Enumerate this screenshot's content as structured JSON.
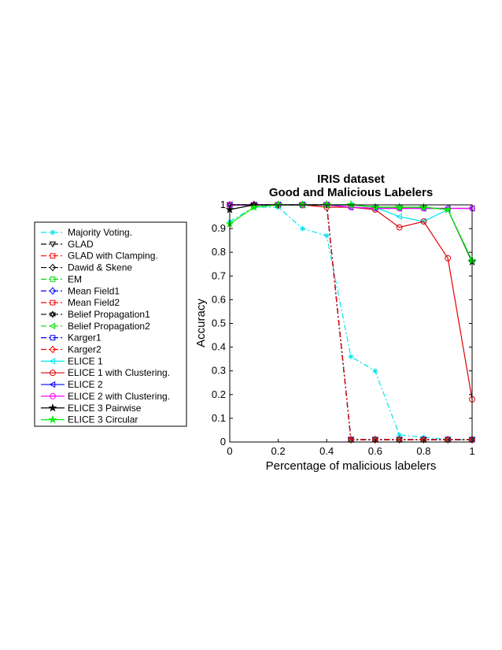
{
  "chart_data": {
    "type": "line",
    "title": "IRIS dataset",
    "subtitle": "Good and Malicious Labelers",
    "xlabel": "Percentage of malicious labelers",
    "ylabel": "Accuracy",
    "xlim": [
      0,
      1
    ],
    "ylim": [
      0,
      1
    ],
    "xticks": [
      "0",
      "0.2",
      "0.4",
      "0.6",
      "0.8",
      "1"
    ],
    "yticks": [
      "0",
      "0.1",
      "0.2",
      "0.3",
      "0.4",
      "0.5",
      "0.6",
      "0.7",
      "0.8",
      "0.9",
      "1"
    ],
    "grid": false,
    "legend_position": "left-outside",
    "x": [
      0,
      0.1,
      0.2,
      0.3,
      0.4,
      0.5,
      0.6,
      0.7,
      0.8,
      0.9,
      1.0
    ],
    "series": [
      {
        "name": "Majority Voting.",
        "color": "#00e5ee",
        "dash": "dashdot",
        "marker": "asterisk",
        "values": [
          0.93,
          0.99,
          0.99,
          0.9,
          0.87,
          0.36,
          0.3,
          0.03,
          0.02,
          0.01,
          0.01
        ]
      },
      {
        "name": "GLAD",
        "color": "#000000",
        "dash": "dashdot",
        "marker": "triangle-down",
        "values": [
          1,
          1,
          1,
          1,
          1,
          0.01,
          0.01,
          0.01,
          0.01,
          0.01,
          0.01
        ]
      },
      {
        "name": "GLAD with Clamping.",
        "color": "#ff0000",
        "dash": "dashdot",
        "marker": "square",
        "values": [
          1,
          1,
          1,
          1,
          1,
          0.01,
          0.01,
          0.01,
          0.01,
          0.01,
          0.01
        ]
      },
      {
        "name": "Dawid & Skene",
        "color": "#000000",
        "dash": "dashdot",
        "marker": "diamond",
        "values": [
          1,
          1,
          1,
          1,
          1,
          0.01,
          0.01,
          0.01,
          0.01,
          0.01,
          0.01
        ]
      },
      {
        "name": "EM",
        "color": "#00dd00",
        "dash": "dashdot",
        "marker": "square",
        "values": [
          1,
          1,
          1,
          1,
          1,
          0.01,
          0.01,
          0.01,
          0.01,
          0.01,
          0.01
        ]
      },
      {
        "name": "Mean Field1",
        "color": "#0000ff",
        "dash": "dashdot",
        "marker": "diamond",
        "values": [
          1,
          1,
          1,
          1,
          1,
          0.01,
          0.01,
          0.01,
          0.01,
          0.01,
          0.01
        ]
      },
      {
        "name": "Mean Field2",
        "color": "#ff0000",
        "dash": "dashdot",
        "marker": "square",
        "values": [
          1,
          1,
          1,
          1,
          1,
          0.01,
          0.01,
          0.01,
          0.01,
          0.01,
          0.01
        ]
      },
      {
        "name": "Belief Propagation1",
        "color": "#000000",
        "dash": "dashdot",
        "marker": "hexagram",
        "values": [
          1,
          1,
          1,
          1,
          1,
          0.01,
          0.01,
          0.01,
          0.01,
          0.01,
          0.01
        ]
      },
      {
        "name": "Belief Propagation2",
        "color": "#00dd00",
        "dash": "dashdot",
        "marker": "triangle-left",
        "values": [
          1,
          1,
          1,
          1,
          1,
          0.01,
          0.01,
          0.01,
          0.01,
          0.01,
          0.01
        ]
      },
      {
        "name": "Karger1",
        "color": "#0000ff",
        "dash": "dashdot",
        "marker": "square",
        "values": [
          1,
          1,
          1,
          1,
          1,
          0.01,
          0.01,
          0.01,
          0.01,
          0.01,
          0.01
        ]
      },
      {
        "name": "Karger2",
        "color": "#ff0000",
        "dash": "dashdot",
        "marker": "diamond",
        "values": [
          1,
          1,
          1,
          1,
          1,
          0.01,
          0.01,
          0.01,
          0.01,
          0.01,
          0.01
        ]
      },
      {
        "name": "ELICE 1",
        "color": "#00e5ee",
        "dash": "solid",
        "marker": "triangle-left",
        "values": [
          1,
          1,
          1,
          1,
          1,
          1,
          0.99,
          0.95,
          0.93,
          0.98,
          0.76
        ]
      },
      {
        "name": "ELICE 1 with Clustering.",
        "color": "#dd0000",
        "dash": "solid",
        "marker": "circle",
        "values": [
          1,
          1,
          1,
          1,
          0.99,
          0.99,
          0.98,
          0.905,
          0.93,
          0.775,
          0.18
        ]
      },
      {
        "name": "ELICE 2",
        "color": "#0000ff",
        "dash": "solid",
        "marker": "triangle-left",
        "values": [
          1,
          1,
          1,
          1,
          1,
          0.99,
          0.985,
          0.985,
          0.985,
          0.985,
          0.985
        ]
      },
      {
        "name": "ELICE 2 with Clustering.",
        "color": "#ff00ff",
        "dash": "solid",
        "marker": "circle",
        "values": [
          1,
          1,
          1,
          1,
          1,
          0.99,
          0.985,
          0.985,
          0.985,
          0.985,
          0.985
        ]
      },
      {
        "name": "ELICE 3 Pairwise",
        "color": "#000000",
        "dash": "solid",
        "marker": "star",
        "values": [
          0.98,
          1,
          1,
          1,
          1,
          1,
          0.99,
          0.99,
          0.99,
          0.98,
          0.76
        ]
      },
      {
        "name": "ELICE 3 Circular",
        "color": "#00ee00",
        "dash": "solid",
        "marker": "star",
        "values": [
          0.92,
          0.99,
          1,
          1,
          1,
          1,
          0.99,
          0.99,
          0.99,
          0.98,
          0.765
        ]
      }
    ]
  }
}
